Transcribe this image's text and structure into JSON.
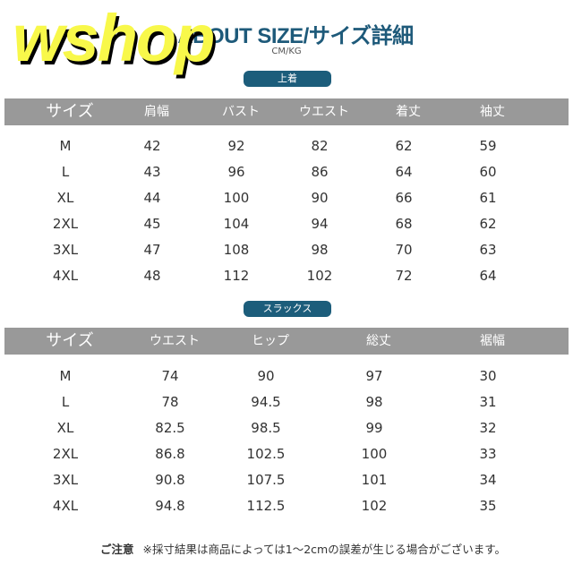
{
  "logo": "wshop",
  "title": "ABOUT SIZE/サイズ詳細",
  "unit": "CM/KG",
  "tops": {
    "label": "上着",
    "headers": [
      "サイズ",
      "肩幅",
      "バスト",
      "ウエスト",
      "着丈",
      "袖丈"
    ],
    "rows": [
      [
        "M",
        "42",
        "92",
        "82",
        "62",
        "59"
      ],
      [
        "L",
        "43",
        "96",
        "86",
        "64",
        "60"
      ],
      [
        "XL",
        "44",
        "100",
        "90",
        "66",
        "61"
      ],
      [
        "2XL",
        "45",
        "104",
        "94",
        "68",
        "62"
      ],
      [
        "3XL",
        "47",
        "108",
        "98",
        "70",
        "63"
      ],
      [
        "4XL",
        "48",
        "112",
        "102",
        "72",
        "64"
      ]
    ]
  },
  "slacks": {
    "label": "スラックス",
    "headers": [
      "サイズ",
      "ウエスト",
      "ヒップ",
      "総丈",
      "裾幅"
    ],
    "rows": [
      [
        "M",
        "74",
        "90",
        "97",
        "30"
      ],
      [
        "L",
        "78",
        "94.5",
        "98",
        "31"
      ],
      [
        "XL",
        "82.5",
        "98.5",
        "99",
        "32"
      ],
      [
        "2XL",
        "86.8",
        "102.5",
        "100",
        "33"
      ],
      [
        "3XL",
        "90.8",
        "107.5",
        "101",
        "34"
      ],
      [
        "4XL",
        "94.8",
        "112.5",
        "102",
        "35"
      ]
    ]
  },
  "note": {
    "label": "ご注意",
    "text": "※採寸結果は商品によっては1～2cmの誤差が生じる場合がございます。"
  },
  "colors": {
    "accent": "#1c5d7b",
    "header_bg": "#999999",
    "logo": "#f8f84a"
  }
}
